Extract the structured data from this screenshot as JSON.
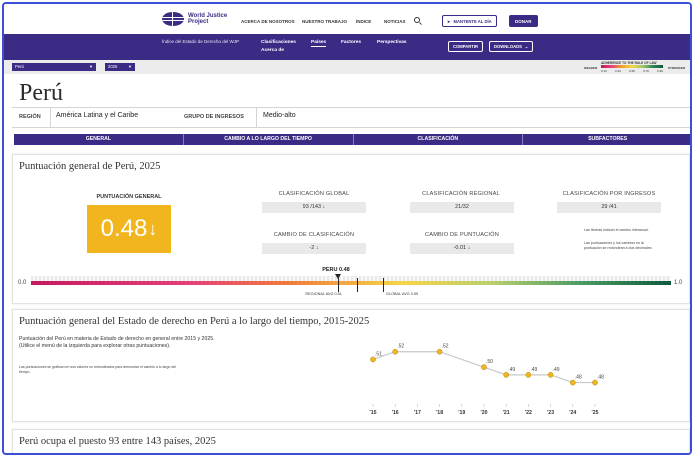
{
  "header": {
    "org_name": "World Justice Project",
    "nav": [
      "ACERCA DE NOSOTROS",
      "NUESTRO TRABAJO",
      "ÍNDICE",
      "NOTICIAS"
    ],
    "stay_updated": "MANTENTE AL DÍA",
    "donate": "DONAR"
  },
  "subnav": {
    "index_title": "Índice del Estado de Derecho del WJP",
    "items": [
      "Clasificaciones",
      "Acerca de",
      "Países",
      "Factores",
      "Perspectivas"
    ],
    "share": "COMPARTIR",
    "downloads": "DOWNLOADS"
  },
  "selectors": {
    "country": "Perú",
    "year": "2025"
  },
  "legend": {
    "title": "ADHERENCE TO THE RULE OF LAW",
    "weaker": "WEAKER",
    "stronger": "STRONGER",
    "ticks": [
      "0.10",
      "0.30",
      "0.50",
      "0.70",
      "0.90"
    ]
  },
  "country": {
    "name": "Perú",
    "region_label": "REGIÓN",
    "region": "América Latina y el Caribe",
    "income_label": "GRUPO DE INGRESOS",
    "income": "Medio-alto"
  },
  "tabs": [
    "GENERAL",
    "CAMBIO A LO LARGO DEL TIEMPO",
    "CLASIFICACIÓN",
    "SUBFACTORES"
  ],
  "overall": {
    "title": "Puntuación general de Perú, 2025",
    "score_label": "PUNTUACIÓN GENERAL",
    "score": "0.48",
    "score_arrow": "↓",
    "global_rank_label": "CLASIFICACIÓN GLOBAL",
    "global_rank": "93 /143 ↓",
    "regional_rank_label": "CLASIFICACIÓN REGIONAL",
    "regional_rank": "21/32",
    "income_rank_label": "CLASIFICACIÓN POR INGRESOS",
    "income_rank": "29 /41",
    "rank_change_label": "CAMBIO DE CLASIFICACIÓN",
    "rank_change": "-2 ↓",
    "score_change_label": "CAMBIO DE PUNTUACIÓN",
    "score_change": "-0.01 ↓",
    "note1": "Las flechas indican el cambio interanual.",
    "note2": "Las puntuaciones y los cambios en la puntuación se redondean a dos decimales",
    "scale_min": "0.0",
    "scale_max": "1.0",
    "pointer_label": "PERU 0.48",
    "pointer_value": 0.48,
    "regional_avg_label": "REGIONAL AVG 0.51",
    "regional_avg": 0.51,
    "global_avg_label": "GLOBAL AVG 0.55",
    "global_avg": 0.55
  },
  "trend": {
    "title": "Puntuación general del Estado de derecho en Perú a lo largo del tiempo, 2015-2025",
    "description": "Puntuación del Perú en materia de Estado de derecho en general entre 2015 y 2025. (Utilice el menú de la izquierda para explorar otras puntuaciones).",
    "note": "Las puntuaciones se grafican en sus valores no redondeados para demostrar el cambio a lo largo del tiempo."
  },
  "chart_data": {
    "type": "line",
    "x": [
      "'15",
      "'16",
      "'17",
      "'18",
      "'19",
      "'20",
      "'21",
      "'22",
      "'23",
      "'24",
      "'25"
    ],
    "series": [
      {
        "values": [
          0.51,
          0.52,
          null,
          0.52,
          null,
          0.5,
          0.49,
          0.49,
          0.49,
          0.48,
          0.48
        ]
      }
    ],
    "point_labels": [
      ".51",
      ".52",
      null,
      ".52",
      null,
      ".50",
      ".49",
      ".49",
      ".49",
      ".48",
      ".48"
    ],
    "title": "",
    "xlabel": "",
    "ylabel": "",
    "ylim": [
      0.46,
      0.53
    ],
    "grid": false,
    "colors": {
      "line": "#c8c8c8",
      "point": "#f1b61e",
      "point_stroke": "#9c7a10"
    }
  },
  "ranking": {
    "title": "Perú ocupa el puesto 93 entre 143 países, 2025"
  }
}
